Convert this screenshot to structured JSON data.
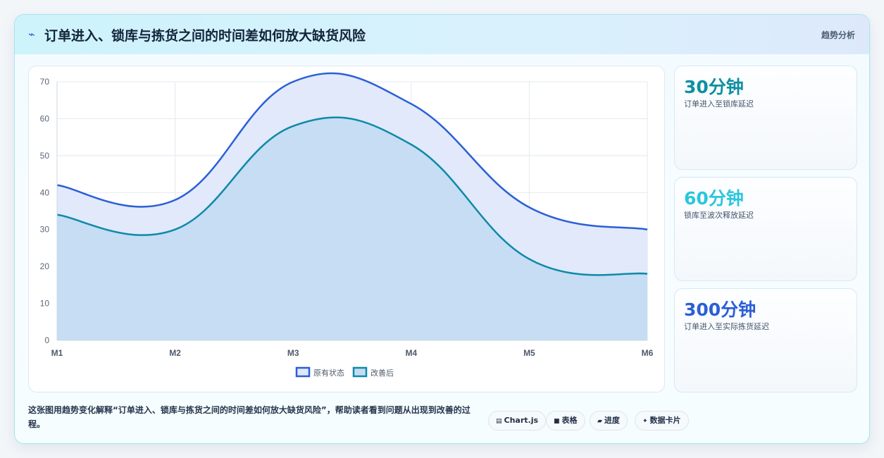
{
  "header": {
    "icon": "lightning-icon",
    "title": "订单进入、锁库与拣货之间的时间差如何放大缺货风险",
    "tag": "趋势分析"
  },
  "colors": {
    "series_original_line": "#2b5fd6",
    "series_original_fill": "#dfe8fb",
    "series_improved_line": "#0e8aa8",
    "series_improved_fill": "#c4dcf2",
    "kpi_1": "#0e8fa3",
    "kpi_2": "#2cc6dc",
    "kpi_3": "#2b5fd6"
  },
  "chart_data": {
    "type": "area",
    "title": "",
    "xlabel": "",
    "ylabel": "",
    "categories": [
      "M1",
      "M2",
      "M3",
      "M4",
      "M5",
      "M6"
    ],
    "series": [
      {
        "name": "原有状态",
        "values": [
          42,
          38,
          70,
          64,
          36,
          30
        ]
      },
      {
        "name": "改善后",
        "values": [
          34,
          30,
          58,
          53,
          22,
          18
        ]
      }
    ],
    "ylim": [
      0,
      70
    ],
    "yticks": [
      0,
      10,
      20,
      30,
      40,
      50,
      60,
      70
    ],
    "grid": true,
    "legend": "bottom"
  },
  "kpis": [
    {
      "value": "30分钟",
      "label": "订单进入至锁库延迟"
    },
    {
      "value": "60分钟",
      "label": "锁库至波次释放延迟"
    },
    {
      "value": "300分钟",
      "label": "订单进入至实际拣货延迟"
    }
  ],
  "footer": {
    "description": "这张图用趋势变化解释“订单进入、锁库与拣货之间的时间差如何放大缺货风险”，帮助读者看到问题从出现到改善的过程。",
    "pills": [
      {
        "icon": "chart-icon",
        "glyph": "▤",
        "label": "Chart.js"
      },
      {
        "icon": "table-icon",
        "glyph": "■",
        "label": "表格"
      },
      {
        "icon": "progress-icon",
        "glyph": "▰",
        "label": "进度"
      },
      {
        "icon": "card-icon",
        "glyph": "✦",
        "label": "数据卡片"
      }
    ]
  }
}
